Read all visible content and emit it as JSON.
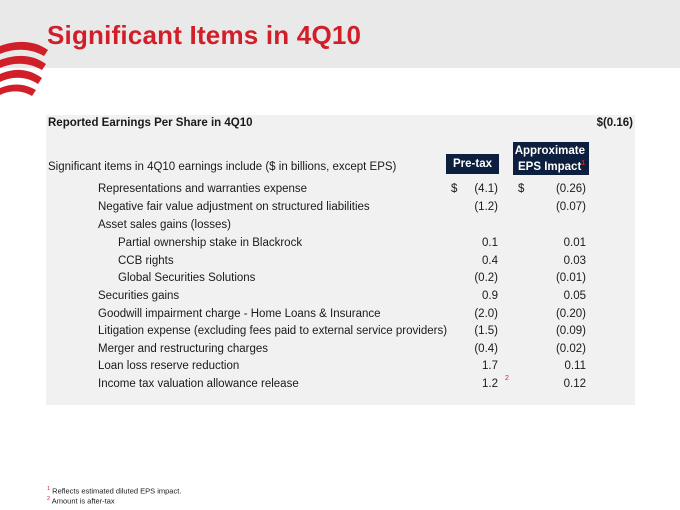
{
  "slide": {
    "title": "Significant Items in 4Q10"
  },
  "table": {
    "reported_label": "Reported Earnings Per Share in 4Q10",
    "reported_value": "$(0.16)",
    "intro": "Significant items in 4Q10 earnings include ($ in billions, except EPS)",
    "col_pretax": "Pre-tax",
    "col_eps_line1": "Approximate",
    "col_eps_line2": "EPS Impact",
    "col_eps_footnote": "1",
    "currency_symbol": "$",
    "rows": [
      {
        "label": "Representations and warranties expense",
        "pretax": "(4.1)",
        "eps": "(0.26)"
      },
      {
        "label": "Negative fair value adjustment on structured liabilities",
        "pretax": "(1.2)",
        "eps": "(0.07)"
      },
      {
        "label": "Asset sales gains (losses)",
        "pretax": "",
        "eps": ""
      },
      {
        "label": "Partial ownership stake in Blackrock",
        "pretax": "0.1",
        "eps": "0.01"
      },
      {
        "label": "CCB rights",
        "pretax": "0.4",
        "eps": "0.03"
      },
      {
        "label": "Global Securities Solutions",
        "pretax": "(0.2)",
        "eps": "(0.01)"
      },
      {
        "label": "Securities gains",
        "pretax": "0.9",
        "eps": "0.05"
      },
      {
        "label": "Goodwill impairment charge - Home Loans & Insurance",
        "pretax": "(2.0)",
        "eps": "(0.20)"
      },
      {
        "label": "Litigation expense (excluding fees paid to external service providers)",
        "pretax": "(1.5)",
        "eps": "(0.09)"
      },
      {
        "label": "Merger and restructuring charges",
        "pretax": "(0.4)",
        "eps": "(0.02)"
      },
      {
        "label": "Loan loss reserve reduction",
        "pretax": "1.7",
        "eps": "0.11"
      },
      {
        "label": "Income tax valuation allowance release",
        "pretax": "1.2",
        "pretax_footnote": "2",
        "eps": "0.12"
      }
    ]
  },
  "footnotes": [
    {
      "marker": "1",
      "text": "Reflects estimated diluted EPS impact."
    },
    {
      "marker": "2",
      "text": "Amount is after-tax"
    }
  ],
  "colors": {
    "title_red": "#d11f2a",
    "header_navy": "#0d1f3e",
    "panel_gray": "#f1f1f1",
    "band_gray": "#e9e9e9"
  }
}
